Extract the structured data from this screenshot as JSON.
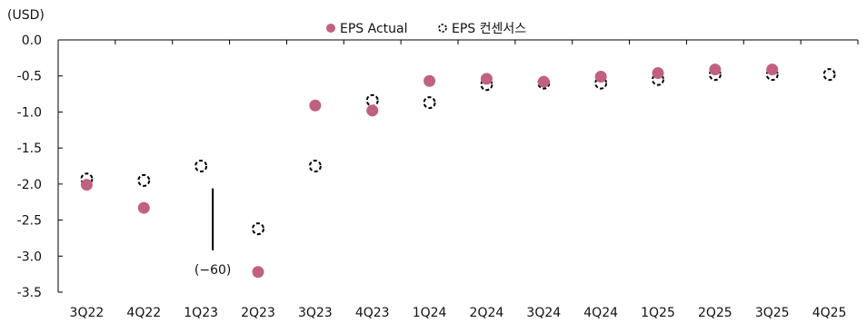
{
  "chart_data": {
    "type": "scatter",
    "unit_label": "(USD)",
    "categories": [
      "3Q22",
      "4Q22",
      "1Q23",
      "2Q23",
      "3Q23",
      "4Q23",
      "1Q24",
      "2Q24",
      "3Q24",
      "4Q24",
      "1Q25",
      "2Q25",
      "3Q25",
      "4Q25"
    ],
    "series": [
      {
        "name": "EPS Actual",
        "style": "filled",
        "color": "#c0617f",
        "values": [
          -2.01,
          -2.33,
          null,
          -3.22,
          -0.91,
          -0.98,
          -0.57,
          -0.54,
          -0.58,
          -0.51,
          -0.46,
          -0.41,
          -0.41,
          null
        ]
      },
      {
        "name": "EPS 컨센서스",
        "style": "dashed-hollow",
        "color": "#000000",
        "values": [
          -1.93,
          -1.95,
          -1.75,
          -2.62,
          -1.75,
          -0.84,
          -0.87,
          -0.62,
          -0.6,
          -0.6,
          -0.55,
          -0.48,
          -0.48,
          -0.48
        ]
      }
    ],
    "ylim": [
      -3.5,
      0.0
    ],
    "yticks": [
      "0.0",
      "-0.5",
      "-1.0",
      "-1.5",
      "-2.0",
      "-2.5",
      "-3.0",
      "-3.5"
    ],
    "annotation": {
      "category": "1Q23",
      "text": "(−60)"
    },
    "legend_position": "top-center",
    "grid": false
  }
}
